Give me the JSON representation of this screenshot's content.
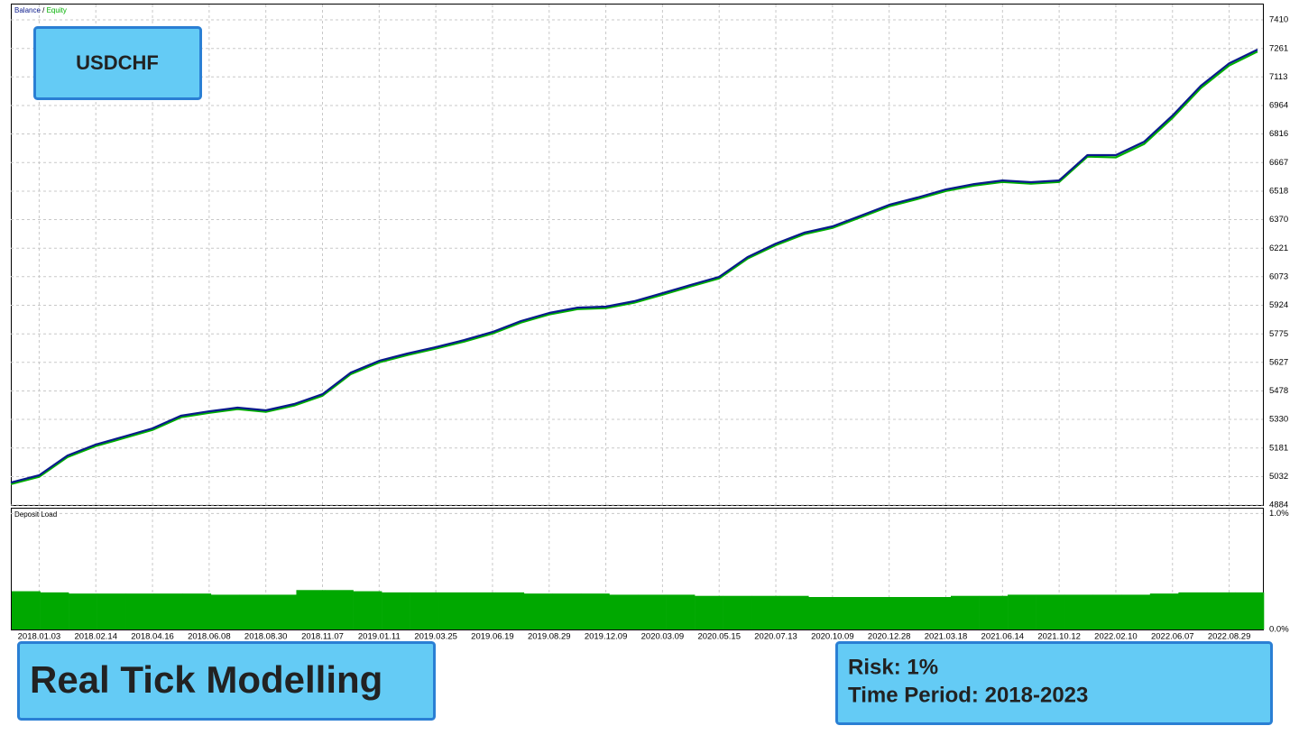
{
  "chart_data": [
    {
      "type": "line",
      "categories": [
        null,
        "2018.01.03",
        null,
        "2018.02.14",
        null,
        "2018.04.16",
        null,
        "2018.06.08",
        null,
        "2018.08.30",
        null,
        "2018.11.07",
        null,
        "2019.01.11",
        null,
        "2019.03.25",
        null,
        "2019.06.19",
        null,
        "2019.08.29",
        null,
        "2019.12.09",
        null,
        "2020.03.09",
        null,
        "2020.05.15",
        null,
        "2020.07.13",
        null,
        "2020.10.09",
        null,
        "2020.12.28",
        null,
        "2021.03.18",
        null,
        "2021.06.14",
        null,
        "2021.10.12",
        null,
        "2022.02.10",
        null,
        "2022.06.07",
        null,
        "2022.08.29",
        null
      ],
      "series": [
        {
          "name": "Equity",
          "color": "#00b000",
          "values": [
            4993,
            5031,
            5134,
            5191,
            5233,
            5275,
            5341,
            5364,
            5383,
            5369,
            5402,
            5453,
            5566,
            5627,
            5665,
            5698,
            5735,
            5777,
            5834,
            5876,
            5904,
            5909,
            5937,
            5979,
            6022,
            6064,
            6167,
            6237,
            6294,
            6327,
            6383,
            6439,
            6477,
            6519,
            6547,
            6566,
            6557,
            6566,
            6698,
            6694,
            6764,
            6900,
            7055,
            7172,
            7245
          ]
        },
        {
          "name": "Balance",
          "color": "#0a1a8c",
          "values": [
            5001,
            5039,
            5142,
            5199,
            5241,
            5283,
            5349,
            5372,
            5391,
            5377,
            5410,
            5461,
            5574,
            5635,
            5673,
            5706,
            5743,
            5785,
            5842,
            5884,
            5912,
            5917,
            5945,
            5987,
            6030,
            6072,
            6175,
            6245,
            6302,
            6335,
            6391,
            6447,
            6485,
            6527,
            6555,
            6574,
            6565,
            6574,
            6706,
            6706,
            6776,
            6912,
            7067,
            7184,
            7255
          ]
        }
      ],
      "ylim": [
        4884,
        7490
      ],
      "yticks": [
        4884,
        5032,
        5181,
        5330,
        5478,
        5627,
        5775,
        5924,
        6073,
        6221,
        6370,
        6518,
        6667,
        6816,
        6964,
        7113,
        7261,
        7410
      ],
      "grid": true
    },
    {
      "type": "bar",
      "title": "Deposit Load",
      "color": "#00a800",
      "values": [
        0.33,
        0.32,
        0.31,
        0.31,
        0.31,
        0.31,
        0.31,
        0.3,
        0.3,
        0.3,
        0.34,
        0.34,
        0.33,
        0.32,
        0.32,
        0.32,
        0.32,
        0.32,
        0.31,
        0.31,
        0.31,
        0.3,
        0.3,
        0.3,
        0.29,
        0.29,
        0.29,
        0.29,
        0.28,
        0.28,
        0.28,
        0.28,
        0.28,
        0.29,
        0.29,
        0.3,
        0.3,
        0.3,
        0.3,
        0.3,
        0.31,
        0.32,
        0.32,
        0.32
      ],
      "ylim": [
        0,
        1.05
      ],
      "yticks": [
        {
          "value": 0,
          "label": "0.0%"
        },
        {
          "value": 1,
          "label": "1.0%"
        }
      ],
      "grid": true
    }
  ],
  "labels": {
    "symbol": "USDCHF",
    "modelling": "Real Tick Modelling",
    "risk": "Risk: 1%",
    "period": "Time Period: 2018-2023"
  }
}
